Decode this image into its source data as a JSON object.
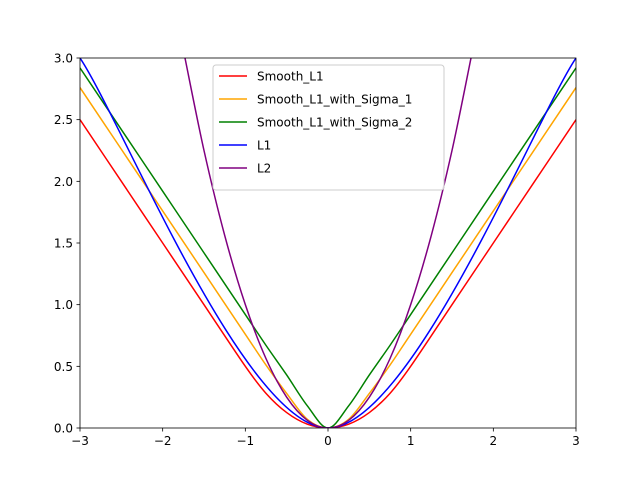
{
  "chart_data": {
    "type": "line",
    "title": "",
    "xlabel": "",
    "ylabel": "",
    "xlim": [
      -3,
      3
    ],
    "ylim": [
      0,
      3
    ],
    "x_ticks": [
      -3,
      -2,
      -1,
      0,
      1,
      2,
      3
    ],
    "x_tick_labels": [
      "−3",
      "−2",
      "−1",
      "0",
      "1",
      "2",
      "3"
    ],
    "y_ticks": [
      0,
      0.5,
      1,
      1.5,
      2,
      2.5,
      3
    ],
    "y_tick_labels": [
      "0.0",
      "0.5",
      "1.0",
      "1.5",
      "2.0",
      "2.5",
      "3.0"
    ],
    "grid": false,
    "legend_position": "upper-center",
    "series": [
      {
        "name": "Smooth_L1",
        "color": "#ff0000",
        "x": [
          -3,
          -2.5,
          -2,
          -1.5,
          -1,
          -0.75,
          -0.5,
          -0.25,
          0,
          0.25,
          0.5,
          0.75,
          1,
          1.5,
          2,
          2.5,
          3
        ],
        "y": [
          2.5,
          2.0,
          1.5,
          1.0,
          0.5,
          0.281,
          0.125,
          0.031,
          0,
          0.031,
          0.125,
          0.281,
          0.5,
          1.0,
          1.5,
          2.0,
          2.5
        ]
      },
      {
        "name": "Smooth_L1_with_Sigma_1",
        "color": "#ffa500",
        "x": [
          -3,
          -2.5,
          -2,
          -1.5,
          -1,
          -0.75,
          -0.5,
          -0.25,
          0,
          0.25,
          0.5,
          0.75,
          1,
          1.5,
          2,
          2.5,
          3
        ],
        "y": [
          2.76,
          2.26,
          1.76,
          1.26,
          0.76,
          0.51,
          0.28,
          0.07,
          0,
          0.07,
          0.28,
          0.51,
          0.76,
          1.26,
          1.76,
          2.26,
          2.76
        ]
      },
      {
        "name": "Smooth_L1_with_Sigma_2",
        "color": "#008000",
        "x": [
          -3,
          -2.5,
          -2,
          -1.5,
          -1,
          -0.75,
          -0.5,
          -0.25,
          0,
          0.25,
          0.5,
          0.75,
          1,
          1.5,
          2,
          2.5,
          3
        ],
        "y": [
          2.92,
          2.42,
          1.92,
          1.42,
          0.92,
          0.67,
          0.43,
          0.18,
          0,
          0.18,
          0.43,
          0.67,
          0.92,
          1.42,
          1.92,
          2.42,
          2.92
        ]
      },
      {
        "name": "L1",
        "color": "#0000ff",
        "x": [
          -3,
          0,
          3
        ],
        "y": [
          3,
          0,
          3
        ]
      },
      {
        "name": "L2",
        "color": "#800080",
        "x": [
          -1.73,
          -1.5,
          -1.25,
          -1,
          -0.75,
          -0.5,
          -0.25,
          0,
          0.25,
          0.5,
          0.75,
          1,
          1.25,
          1.5,
          1.73
        ],
        "y": [
          3.0,
          2.25,
          1.5625,
          1.0,
          0.5625,
          0.25,
          0.0625,
          0,
          0.0625,
          0.25,
          0.5625,
          1.0,
          1.5625,
          2.25,
          3.0
        ]
      }
    ]
  }
}
